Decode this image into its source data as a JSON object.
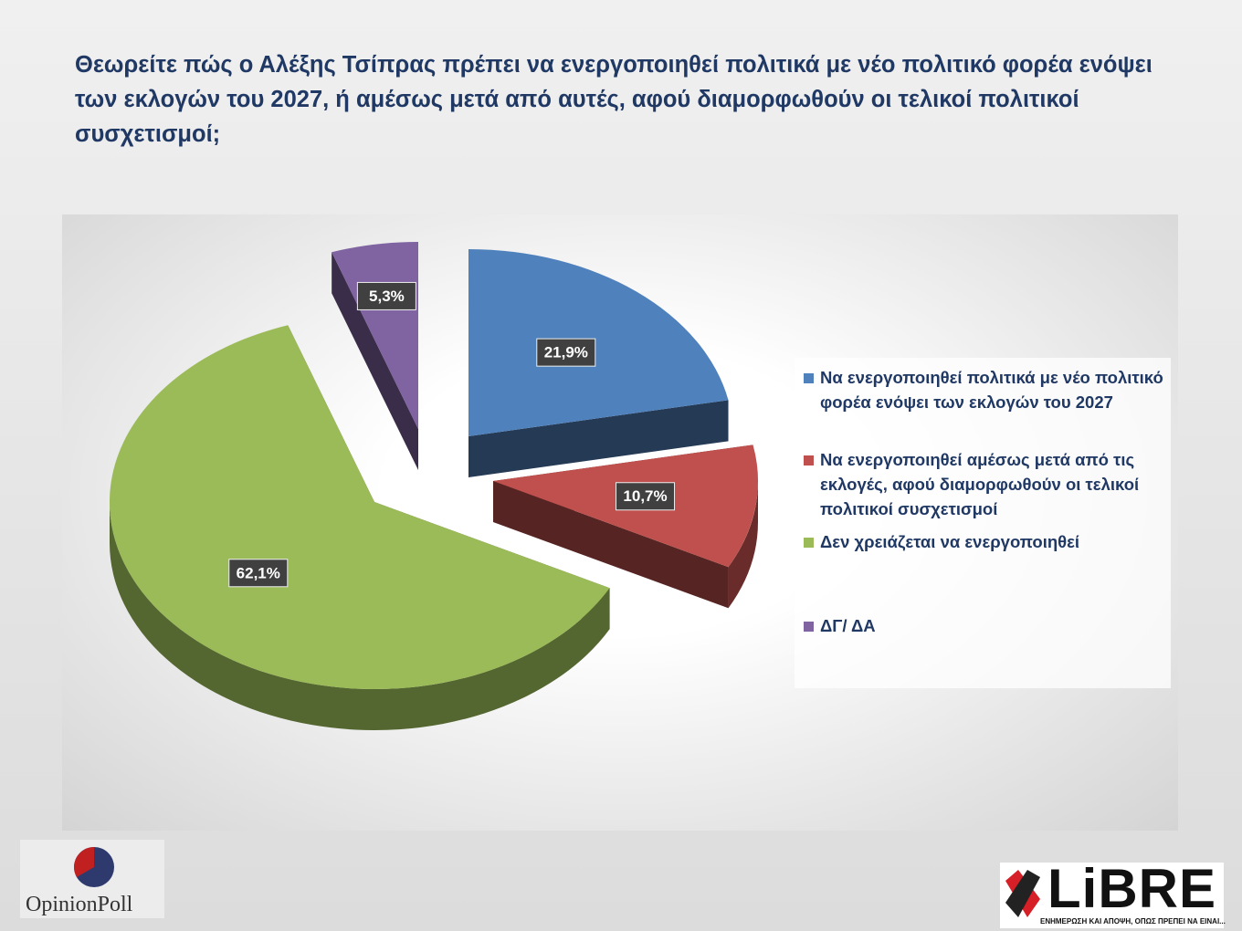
{
  "chart_data": {
    "type": "pie",
    "title": "Θεωρείτε πώς ο Αλέξης Τσίπρας πρέπει να ενεργοποιηθεί πολιτικά με νέο πολιτικό φορέα ενόψει των εκλογών του 2027, ή αμέσως μετά από αυτές, αφού διαμορφωθούν οι τελικοί πολιτικοί συσχετισμοί;",
    "categories": [
      "Να ενεργοποιηθεί πολιτικά με νέο πολιτικό φορέα ενόψει των εκλογών του 2027",
      "Να ενεργοποιηθεί αμέσως μετά από τις εκλογές, αφού διαμορφωθούν οι τελικοί πολιτικοί συσχετισμοί",
      "Δεν χρειάζεται να ενεργοποιηθεί",
      "ΔΓ/ ΔΑ"
    ],
    "values": [
      21.9,
      10.7,
      62.1,
      5.3
    ],
    "value_labels": [
      "21,9%",
      "10,7%",
      "62,1%",
      "5,3%"
    ],
    "colors": [
      "#4f81bd",
      "#c0504d",
      "#9bbb59",
      "#8064a2"
    ],
    "legend": "right"
  },
  "logos": {
    "left": "OpinionPoll",
    "right": "LiBRE",
    "right_tagline": "ΕΝΗΜΕΡΩΣΗ ΚΑΙ ΑΠΟΨΗ, ΟΠΩΣ ΠΡΕΠΕΙ ΝΑ ΕΙΝΑΙ..."
  }
}
